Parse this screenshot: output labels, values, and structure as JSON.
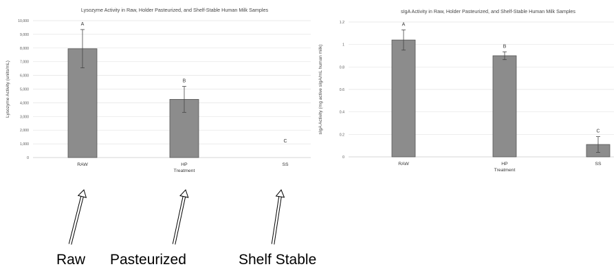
{
  "chart_data": [
    {
      "type": "bar",
      "title": "Lysozyme Activity in Raw, Holder Pasteurized, and Shelf-Stable Human Milk Samples",
      "xlabel": "Treatment",
      "ylabel": "Lysozyme Activity (units/mL)",
      "categories": [
        "RAW",
        "HP",
        "SS"
      ],
      "values": [
        7950,
        4250,
        0
      ],
      "error": [
        1400,
        950,
        0
      ],
      "letters": [
        "A",
        "B",
        "C"
      ],
      "ylim": [
        0,
        10000
      ],
      "yticks": [
        0,
        1000,
        2000,
        3000,
        4000,
        5000,
        6000,
        7000,
        8000,
        9000,
        10000
      ],
      "ytick_labels": [
        "0",
        "1,000",
        "2,000",
        "3,000",
        "4,000",
        "5,000",
        "6,000",
        "7,000",
        "8,000",
        "9,000",
        "10,000"
      ],
      "grid": true
    },
    {
      "type": "bar",
      "title": "sIgA Activity in Raw, Holder Pasteurized, and Shelf-Stable Human Milk Samples",
      "xlabel": "Treatment",
      "ylabel": "sIgA Activity (mg active sIgA/mL human milk)",
      "categories": [
        "RAW",
        "HP",
        "SS"
      ],
      "values": [
        1.04,
        0.9,
        0.11
      ],
      "error": [
        0.09,
        0.035,
        0.07
      ],
      "letters": [
        "A",
        "B",
        "C"
      ],
      "ylim": [
        0,
        1.2
      ],
      "yticks": [
        0,
        0.2,
        0.4,
        0.6,
        0.8,
        1,
        1.2
      ],
      "ytick_labels": [
        "0",
        "0.2",
        "0.4",
        "0.6",
        "0.8",
        "1",
        "1.2"
      ],
      "grid": true
    }
  ],
  "annotations": {
    "raw": "Raw",
    "pasteurized": "Pasteurized",
    "shelf_stable": "Shelf Stable"
  },
  "colors": {
    "bar": "#8c8c8c",
    "bar_border": "#555555",
    "grid": "#e3e3e3"
  }
}
